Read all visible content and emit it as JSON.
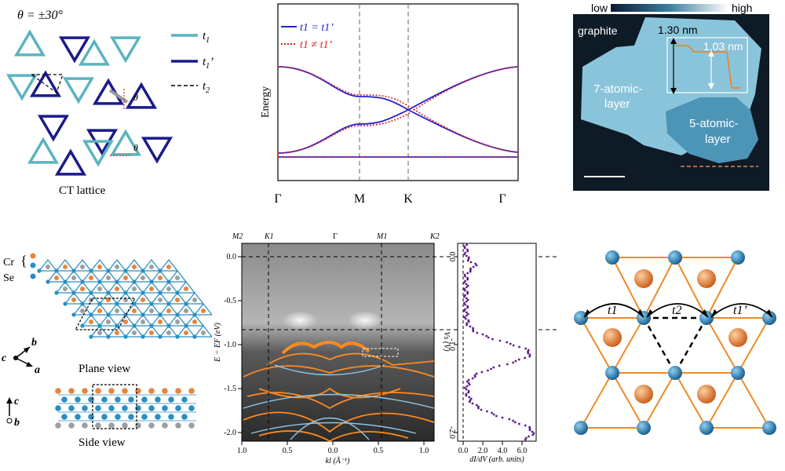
{
  "panel_a": {
    "theta_label": "θ = ±30°",
    "theta_symbol": "θ",
    "caption": "CT lattice",
    "legend": [
      {
        "label": "t",
        "sub": "1",
        "prime": "",
        "color": "#5ab4bf",
        "style": "solid"
      },
      {
        "label": "t",
        "sub": "1",
        "prime": "’",
        "color": "#1a1a8c",
        "style": "solid"
      },
      {
        "label": "t",
        "sub": "2",
        "prime": "",
        "color": "#000000",
        "style": "dashed"
      }
    ]
  },
  "panel_b": {
    "ylabel": "Energy",
    "xticks": [
      "Γ",
      "M",
      "K",
      "Γ"
    ],
    "legend": [
      {
        "text": "t1 = t1’",
        "color": "#2222cc",
        "style": "solid"
      },
      {
        "text": "t1 ≠ t1’",
        "color": "#e02020",
        "style": "dotted"
      }
    ]
  },
  "panel_c": {
    "colorbar_low": "low",
    "colorbar_high": "high",
    "graphite": "graphite",
    "h1": "1.30 nm",
    "h2": "1.03 nm",
    "layer7_a": "7-atomic-",
    "layer7_b": "layer",
    "layer5_a": "5-atomic-",
    "layer5_b": "layer"
  },
  "panel_d": {
    "cr": "Cr",
    "se": "Se",
    "axis_c": "c",
    "axis_b": "b",
    "axis_a": "a",
    "plane_view": "Plane view",
    "side_view": "Side view",
    "side_c": "c",
    "side_b": "b",
    "colors": {
      "cr": "#e8853a",
      "se": "#9e9e9e",
      "bond": "#2a8fc0"
    }
  },
  "panel_e": {
    "top_labels": [
      "M2",
      "K1",
      "Γ",
      "M1",
      "K2"
    ],
    "yticks": [
      "0.0",
      "-0.5",
      "-1.0",
      "-1.5",
      "-2.0"
    ],
    "ylabel": "E − EF (eV)",
    "xticks": [
      "1.0",
      "0.5",
      "0.0",
      "0.5",
      "1.0"
    ],
    "xlabel": "kl (Å⁻¹)",
    "sts_yticks": [
      "0.0",
      "-1.0",
      "-2.0"
    ],
    "sts_ylabel": "Vs (V)",
    "sts_xticks": [
      "0.0",
      "2.0",
      "4.0",
      "6.0"
    ],
    "sts_xlabel": "dI/dV (arb. units)"
  },
  "panel_f": {
    "t1": "t1",
    "t2": "t2",
    "t1p": "t1’"
  }
}
